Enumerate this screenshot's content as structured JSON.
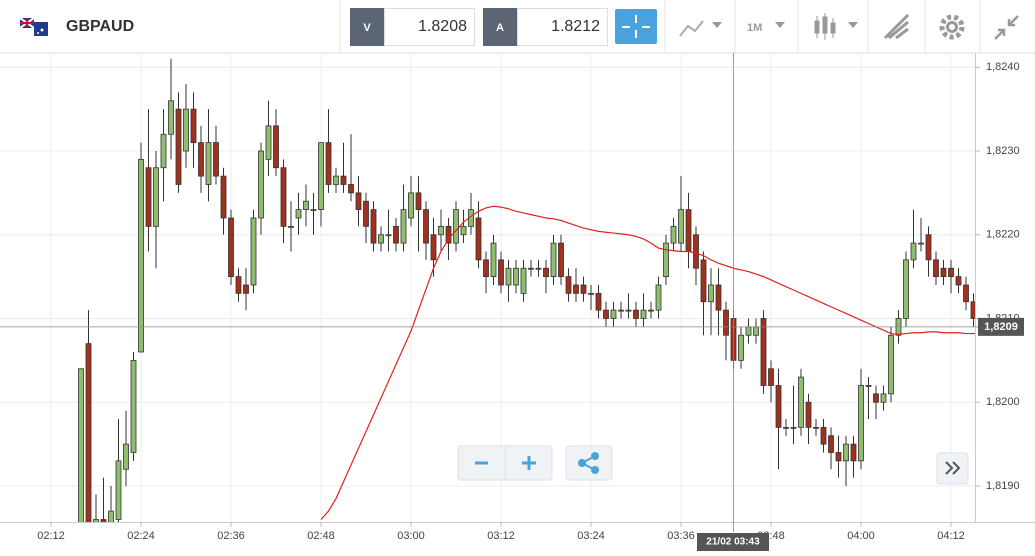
{
  "toolbar": {
    "symbol": "GBPAUD",
    "bid_label": "V",
    "bid": "1.8208",
    "ask_label": "A",
    "ask": "1.8212",
    "timeframe": "1M"
  },
  "chart_data": {
    "type": "candlestick",
    "categories": [
      "02:12",
      null,
      null,
      null,
      null,
      null,
      null,
      null,
      null,
      null,
      null,
      null,
      "02:24",
      null,
      null,
      null,
      null,
      null,
      null,
      null,
      null,
      null,
      null,
      null,
      "02:36",
      null,
      null,
      null,
      null,
      null,
      null,
      null,
      null,
      null,
      null,
      null,
      "02:48",
      null,
      null,
      null,
      null,
      null,
      null,
      null,
      null,
      null,
      null,
      null,
      "03:00",
      null,
      null,
      null,
      null,
      null,
      null,
      null,
      null,
      null,
      null,
      null,
      "03:12",
      null,
      null,
      null,
      null,
      null,
      null,
      null,
      null,
      null,
      null,
      null,
      "03:24",
      null,
      null,
      null,
      null,
      null,
      null,
      null,
      null,
      null,
      null,
      null,
      "03:36",
      null,
      null,
      null,
      null,
      null,
      null,
      null,
      null,
      null,
      null,
      null,
      "03:48",
      null,
      null,
      null,
      null,
      null,
      null,
      null,
      null,
      null,
      null,
      null,
      "04:00",
      null,
      null,
      null,
      null,
      null,
      null,
      null,
      null,
      null,
      null,
      null,
      "04:12",
      null,
      null,
      null,
      null
    ],
    "ohlc": [
      null,
      null,
      null,
      null,
      [
        1.8185,
        1.8204,
        1.8184,
        1.8204
      ],
      [
        1.8207,
        1.8211,
        1.8184,
        1.8185
      ],
      [
        1.8185,
        1.8189,
        1.8184,
        1.8186
      ],
      [
        1.8186,
        1.8191,
        1.8184,
        1.8185
      ],
      [
        1.8185,
        1.819,
        1.8184,
        1.8187
      ],
      [
        1.8186,
        1.8198,
        1.8185,
        1.8193
      ],
      [
        1.8192,
        1.8199,
        1.819,
        1.8195
      ],
      [
        1.8194,
        1.8206,
        1.8193,
        1.8205
      ],
      [
        1.8206,
        1.8231,
        1.8206,
        1.8229
      ],
      [
        1.8228,
        1.8235,
        1.8218,
        1.8221
      ],
      [
        1.8221,
        1.823,
        1.8216,
        1.8228
      ],
      [
        1.8228,
        1.8235,
        1.8224,
        1.8232
      ],
      [
        1.8232,
        1.8241,
        1.8229,
        1.8236
      ],
      [
        1.8235,
        1.8237,
        1.8225,
        1.8226
      ],
      [
        1.823,
        1.8238,
        1.8228,
        1.8235
      ],
      [
        1.8235,
        1.8237,
        1.8228,
        1.8231
      ],
      [
        1.8231,
        1.8233,
        1.8225,
        1.8227
      ],
      [
        1.8226,
        1.8235,
        1.8224,
        1.8231
      ],
      [
        1.8231,
        1.8233,
        1.8226,
        1.8227
      ],
      [
        1.8227,
        1.8228,
        1.822,
        1.8222
      ],
      [
        1.8222,
        1.8223,
        1.8214,
        1.8215
      ],
      [
        1.8215,
        1.8216,
        1.8212,
        1.8213
      ],
      [
        1.8214,
        1.8216,
        1.8211,
        1.8213
      ],
      [
        1.8214,
        1.8223,
        1.8213,
        1.8222
      ],
      [
        1.8222,
        1.8231,
        1.822,
        1.823
      ],
      [
        1.8229,
        1.8236,
        1.8227,
        1.8233
      ],
      [
        1.8233,
        1.8235,
        1.8227,
        1.8228
      ],
      [
        1.8228,
        1.8229,
        1.8219,
        1.8221
      ],
      [
        1.8221,
        1.8224,
        1.8218,
        1.8221
      ],
      [
        1.8222,
        1.8225,
        1.822,
        1.8223
      ],
      [
        1.8223,
        1.8226,
        1.8221,
        1.8224
      ],
      [
        1.8223,
        1.8225,
        1.822,
        1.8223
      ],
      [
        1.8223,
        1.8231,
        1.8221,
        1.8231
      ],
      [
        1.8231,
        1.8235,
        1.8225,
        1.8226
      ],
      [
        1.8226,
        1.8228,
        1.8225,
        1.8227
      ],
      [
        1.8227,
        1.8231,
        1.8225,
        1.8226
      ],
      [
        1.8226,
        1.8232,
        1.8224,
        1.8225
      ],
      [
        1.8225,
        1.8227,
        1.8221,
        1.8223
      ],
      [
        1.8224,
        1.8225,
        1.8219,
        1.8221
      ],
      [
        1.8223,
        1.8224,
        1.8218,
        1.8219
      ],
      [
        1.8219,
        1.8221,
        1.8218,
        1.822
      ],
      [
        1.822,
        1.8223,
        1.8218,
        1.822
      ],
      [
        1.8221,
        1.8222,
        1.8218,
        1.8219
      ],
      [
        1.8219,
        1.8226,
        1.8218,
        1.8223
      ],
      [
        1.8222,
        1.8227,
        1.8221,
        1.8225
      ],
      [
        1.8225,
        1.8227,
        1.8218,
        1.8223
      ],
      [
        1.8223,
        1.8224,
        1.8217,
        1.8219
      ],
      [
        1.822,
        1.8222,
        1.8215,
        1.8217
      ],
      [
        1.822,
        1.8223,
        1.8218,
        1.8221
      ],
      [
        1.8221,
        1.8222,
        1.8217,
        1.8219
      ],
      [
        1.8219,
        1.8224,
        1.8218,
        1.8223
      ],
      [
        1.822,
        1.8223,
        1.8219,
        1.8221
      ],
      [
        1.8221,
        1.8225,
        1.822,
        1.8223
      ],
      [
        1.8222,
        1.8224,
        1.8216,
        1.8217
      ],
      [
        1.8217,
        1.8218,
        1.8213,
        1.8215
      ],
      [
        1.8215,
        1.822,
        1.8214,
        1.8219
      ],
      [
        1.8217,
        1.8218,
        1.8213,
        1.8214
      ],
      [
        1.8214,
        1.8217,
        1.8212,
        1.8216
      ],
      [
        1.8214,
        1.8217,
        1.8213,
        1.8216
      ],
      [
        1.8213,
        1.8217,
        1.8212,
        1.8216
      ],
      [
        1.8216,
        1.8217,
        1.8215,
        1.8216
      ],
      [
        1.8216,
        1.8217,
        1.8215,
        1.8216
      ],
      [
        1.8216,
        1.8217,
        1.8213,
        1.8215
      ],
      [
        1.8215,
        1.822,
        1.8214,
        1.8219
      ],
      [
        1.8219,
        1.822,
        1.8214,
        1.8215
      ],
      [
        1.8215,
        1.8216,
        1.8212,
        1.8213
      ],
      [
        1.8214,
        1.8216,
        1.8212,
        1.8213
      ],
      [
        1.8214,
        1.8215,
        1.8212,
        1.8213
      ],
      [
        1.8213,
        1.8214,
        1.8211,
        1.8213
      ],
      [
        1.8213,
        1.8214,
        1.821,
        1.8211
      ],
      [
        1.8211,
        1.8212,
        1.8209,
        1.821
      ],
      [
        1.821,
        1.8212,
        1.8209,
        1.8211
      ],
      [
        1.8211,
        1.8212,
        1.821,
        1.8211
      ],
      [
        1.8211,
        1.8213,
        1.821,
        1.8211
      ],
      [
        1.8211,
        1.8212,
        1.8209,
        1.821
      ],
      [
        1.821,
        1.8213,
        1.8209,
        1.8211
      ],
      [
        1.8211,
        1.8212,
        1.821,
        1.8211
      ],
      [
        1.8211,
        1.8215,
        1.821,
        1.8214
      ],
      [
        1.8215,
        1.822,
        1.8214,
        1.8219
      ],
      [
        1.8219,
        1.8222,
        1.8218,
        1.8221
      ],
      [
        1.8219,
        1.8227,
        1.8218,
        1.8223
      ],
      [
        1.8223,
        1.8225,
        1.8216,
        1.8218
      ],
      [
        1.822,
        1.8221,
        1.8214,
        1.8216
      ],
      [
        1.8217,
        1.8218,
        1.8208,
        1.8212
      ],
      [
        1.8212,
        1.8216,
        1.8208,
        1.8214
      ],
      [
        1.8214,
        1.8216,
        1.8208,
        1.8211
      ],
      [
        1.8211,
        1.8212,
        1.8205,
        1.8208
      ],
      [
        1.821,
        1.8211,
        1.8204,
        1.8205
      ],
      [
        1.8205,
        1.8209,
        1.8204,
        1.8208
      ],
      [
        1.8208,
        1.821,
        1.8207,
        1.8209
      ],
      [
        1.8208,
        1.821,
        1.8207,
        1.8209
      ],
      [
        1.821,
        1.8211,
        1.8201,
        1.8202
      ],
      [
        1.8204,
        1.8205,
        1.82,
        1.8202
      ],
      [
        1.8202,
        1.8204,
        1.8192,
        1.8197
      ],
      [
        1.8197,
        1.8198,
        1.8196,
        1.8197
      ],
      [
        1.8197,
        1.8202,
        1.8195,
        1.8197
      ],
      [
        1.8197,
        1.8204,
        1.8196,
        1.8203
      ],
      [
        1.82,
        1.8201,
        1.8195,
        1.8197
      ],
      [
        1.8197,
        1.8198,
        1.8196,
        1.8197
      ],
      [
        1.8197,
        1.8198,
        1.8194,
        1.8195
      ],
      [
        1.8196,
        1.8197,
        1.8192,
        1.8194
      ],
      [
        1.8194,
        1.8196,
        1.8191,
        1.8193
      ],
      [
        1.8193,
        1.8196,
        1.819,
        1.8195
      ],
      [
        1.8195,
        1.8196,
        1.8191,
        1.8193
      ],
      [
        1.8193,
        1.8204,
        1.8192,
        1.8202
      ],
      [
        1.8202,
        1.8203,
        1.8198,
        1.8202
      ],
      [
        1.8201,
        1.8202,
        1.8198,
        1.82
      ],
      [
        1.82,
        1.8202,
        1.8199,
        1.8201
      ],
      [
        1.8201,
        1.8209,
        1.82,
        1.8208
      ],
      [
        1.8208,
        1.8211,
        1.8207,
        1.821
      ],
      [
        1.821,
        1.8218,
        1.8209,
        1.8217
      ],
      [
        1.8217,
        1.8223,
        1.8216,
        1.8219
      ],
      [
        1.8219,
        1.8222,
        1.8218,
        1.8219
      ],
      [
        1.822,
        1.8221,
        1.8215,
        1.8217
      ],
      [
        1.8217,
        1.8218,
        1.8214,
        1.8215
      ],
      [
        1.8216,
        1.8217,
        1.8214,
        1.8215
      ],
      [
        1.8216,
        1.8217,
        1.8213,
        1.8215
      ],
      [
        1.8215,
        1.8216,
        1.8213,
        1.8214
      ],
      [
        1.8214,
        1.8215,
        1.8211,
        1.8212
      ],
      [
        1.8212,
        1.8213,
        1.8209,
        1.821
      ],
      [
        1.821,
        1.8211,
        1.8206,
        1.8209
      ]
    ],
    "up_color": "#8fbf6e",
    "down_color": "#a3301c",
    "ma": {
      "color": "#e0231c",
      "values": [
        null,
        null,
        null,
        null,
        null,
        null,
        null,
        null,
        null,
        null,
        null,
        null,
        null,
        null,
        null,
        null,
        null,
        null,
        null,
        null,
        null,
        null,
        null,
        null,
        null,
        null,
        null,
        null,
        null,
        null,
        null,
        null,
        null,
        null,
        null,
        null,
        1.8186,
        1.8187,
        1.81885,
        1.81905,
        1.81925,
        1.81945,
        1.81965,
        1.81985,
        1.82005,
        1.82025,
        1.82045,
        1.82065,
        1.82085,
        1.8211,
        1.82135,
        1.8216,
        1.8218,
        1.82195,
        1.82205,
        1.82215,
        1.82222,
        1.82228,
        1.82232,
        1.82234,
        1.82233,
        1.82231,
        1.82228,
        1.82226,
        1.82224,
        1.82222,
        1.8222,
        1.82219,
        1.82217,
        1.82214,
        1.82211,
        1.82208,
        1.82206,
        1.82204,
        1.82203,
        1.82202,
        1.82201,
        1.822,
        1.82198,
        1.82195,
        1.8219,
        1.82184,
        1.82182,
        1.82181,
        1.8218,
        1.8218,
        1.82178,
        1.82175,
        1.8217,
        1.82166,
        1.82163,
        1.8216,
        1.82158,
        1.82156,
        1.82153,
        1.8215,
        1.82146,
        1.82142,
        1.82138,
        1.82134,
        1.8213,
        1.82126,
        1.82122,
        1.82118,
        1.82114,
        1.8211,
        1.82106,
        1.82102,
        1.82098,
        1.82094,
        1.8209,
        1.82086,
        1.82082,
        1.82081,
        1.82082,
        1.82083,
        1.82083,
        1.82084,
        1.82084,
        1.82083,
        1.82083,
        1.82083,
        1.82082,
        1.82082,
        1.82082
      ]
    },
    "ylim": [
      1.81857,
      1.82417
    ],
    "yticks": [
      {
        "value": 1.819,
        "label": "1,8190"
      },
      {
        "value": 1.82,
        "label": "1,8200"
      },
      {
        "value": 1.821,
        "label": "1,8210"
      },
      {
        "value": 1.822,
        "label": "1,8220"
      },
      {
        "value": 1.823,
        "label": "1,8230"
      },
      {
        "value": 1.824,
        "label": "1,8240"
      }
    ],
    "grid": true,
    "crosshair": {
      "price": {
        "value": 1.8209,
        "label": "1,8209"
      },
      "time_label": "21/02 03:43"
    }
  }
}
